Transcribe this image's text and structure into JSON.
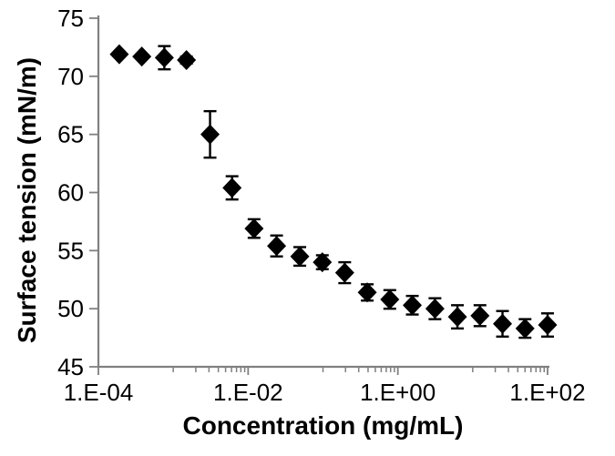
{
  "figure": {
    "background": "#ffffff",
    "axis_color": "#808080",
    "marker_color": "#000000",
    "errorbar_color": "#000000",
    "text_color": "#000000"
  },
  "chart_data": {
    "type": "scatter",
    "title": "",
    "xlabel": "Concentration (mg/mL)",
    "ylabel": "Surface tension (mN/m)",
    "x_scale": "log",
    "y_scale": "linear",
    "xlim": [
      0.0001,
      100
    ],
    "ylim": [
      45,
      75
    ],
    "grid": false,
    "legend": null,
    "marker": "diamond",
    "x_major_ticks": [
      {
        "value": 0.0001,
        "label": "1.E-04"
      },
      {
        "value": 0.01,
        "label": "1.E-02"
      },
      {
        "value": 1,
        "label": "1.E+00"
      },
      {
        "value": 100,
        "label": "1.E+02"
      }
    ],
    "x_minor_tick_decades": [
      -3,
      -1,
      1
    ],
    "y_ticks": [
      {
        "value": 45,
        "label": "45"
      },
      {
        "value": 50,
        "label": "50"
      },
      {
        "value": 55,
        "label": "55"
      },
      {
        "value": 60,
        "label": "60"
      },
      {
        "value": 65,
        "label": "65"
      },
      {
        "value": 70,
        "label": "70"
      },
      {
        "value": 75,
        "label": "75"
      }
    ],
    "series": [
      {
        "name": "surface-tension",
        "x": [
          0.00019,
          0.00038,
          0.00076,
          0.0015,
          0.0031,
          0.0061,
          0.012,
          0.024,
          0.049,
          0.098,
          0.195,
          0.39,
          0.78,
          1.56,
          3.13,
          6.25,
          12.5,
          25,
          50,
          100
        ],
        "y": [
          71.9,
          71.7,
          71.6,
          71.4,
          65.0,
          60.4,
          56.9,
          55.4,
          54.5,
          54.0,
          53.1,
          51.4,
          50.8,
          50.3,
          50.0,
          49.3,
          49.4,
          48.7,
          48.3,
          48.6
        ],
        "yerr": [
          0.2,
          0.2,
          1.0,
          0.3,
          2.0,
          1.0,
          0.8,
          0.9,
          0.8,
          0.6,
          0.9,
          0.7,
          0.8,
          0.8,
          0.9,
          1.0,
          0.9,
          1.1,
          0.8,
          1.0
        ]
      }
    ]
  }
}
